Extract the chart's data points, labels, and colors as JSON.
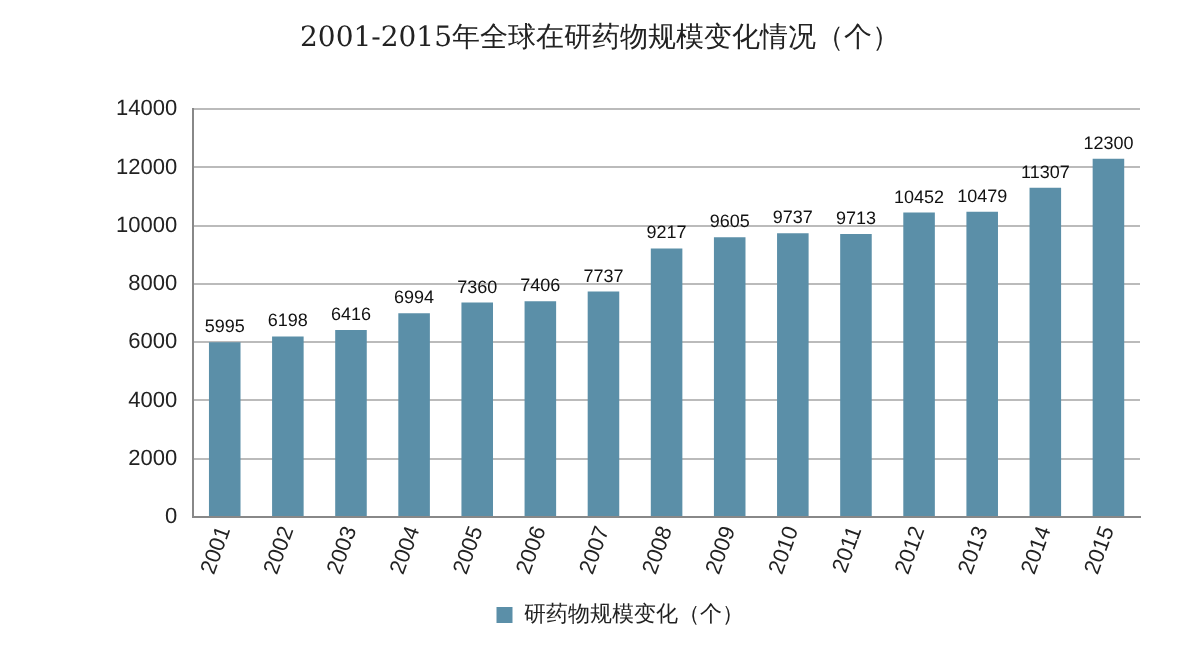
{
  "chart_data": {
    "type": "bar",
    "title": "2001-2015年全球在研药物规模变化情况（个）",
    "categories": [
      "2001",
      "2002",
      "2003",
      "2004",
      "2005",
      "2006",
      "2007",
      "2008",
      "2009",
      "2010",
      "2011",
      "2012",
      "2013",
      "2014",
      "2015"
    ],
    "series": [
      {
        "name": "研药物规模变化（个）",
        "color": "#5b8fa8",
        "values": [
          5995,
          6198,
          6416,
          6994,
          7360,
          7406,
          7737,
          9217,
          9605,
          9737,
          9713,
          10452,
          10479,
          11307,
          12300
        ]
      }
    ],
    "ylim": [
      0,
      14000
    ],
    "yticks": [
      0,
      2000,
      4000,
      6000,
      8000,
      10000,
      12000,
      14000
    ],
    "grid": "y",
    "legend": "bottom",
    "data_labels": true
  }
}
